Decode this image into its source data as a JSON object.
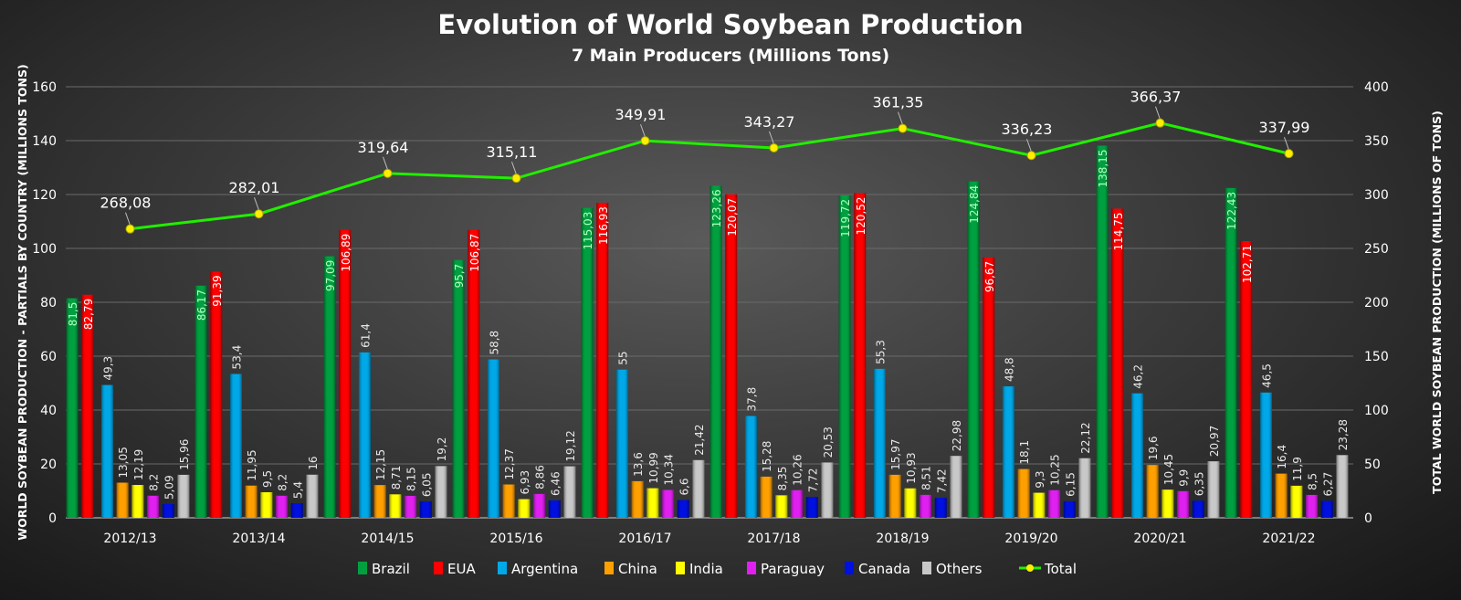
{
  "chart_data": {
    "type": "bar",
    "title": "Evolution of World Soybean Production",
    "subtitle": "7 Main Producers (Millions Tons)",
    "ylabel": "WORLD SOYBEAN PRODUCTION - PARTIALS BY COUNTRY (MILLIONS TONS)",
    "y2label": "TOTAL WORLD SOYBEAN PRODUCTION (MILLIONS OF TONS)",
    "ylim": [
      0,
      160
    ],
    "y2lim": [
      0,
      400
    ],
    "yticks": [
      0,
      20,
      40,
      60,
      80,
      100,
      120,
      140,
      160
    ],
    "y2ticks": [
      0,
      50,
      100,
      150,
      200,
      250,
      300,
      350,
      400
    ],
    "grid": true,
    "legend": "bottom",
    "categories": [
      "2012/13",
      "2013/14",
      "2014/15",
      "2015/16",
      "2016/17",
      "2017/18",
      "2018/19",
      "2019/20",
      "2020/21",
      "2021/22"
    ],
    "series": [
      {
        "name": "Brazil",
        "color": "#00a040",
        "values": [
          81.5,
          86.17,
          97.09,
          95.7,
          115.03,
          123.26,
          119.72,
          124.84,
          138.15,
          122.43
        ],
        "labels": [
          "81,5",
          "86,17",
          "97,09",
          "95,7",
          "115,03",
          "123,26",
          "119,72",
          "124,84",
          "138,15",
          "122,43"
        ]
      },
      {
        "name": "EUA",
        "color": "#ff0000",
        "values": [
          82.79,
          91.39,
          106.89,
          106.87,
          116.93,
          120.07,
          120.52,
          96.67,
          114.75,
          102.71
        ],
        "labels": [
          "82,79",
          "91,39",
          "106,89",
          "106,87",
          "116,93",
          "120,07",
          "120,52",
          "96,67",
          "114,75",
          "102,71"
        ]
      },
      {
        "name": "Argentina",
        "color": "#00a8e8",
        "values": [
          49.3,
          53.4,
          61.4,
          58.8,
          55,
          37.8,
          55.3,
          48.8,
          46.2,
          46.5
        ],
        "labels": [
          "49,3",
          "53,4",
          "61,4",
          "58,8",
          "55",
          "37,8",
          "55,3",
          "48,8",
          "46,2",
          "46,5"
        ]
      },
      {
        "name": "China",
        "color": "#ffa000",
        "values": [
          13.05,
          11.95,
          12.15,
          12.37,
          13.6,
          15.28,
          15.97,
          18.1,
          19.6,
          16.4
        ],
        "labels": [
          "13,05",
          "11,95",
          "12,15",
          "12,37",
          "13,6",
          "15,28",
          "15,97",
          "18,1",
          "19,6",
          "16,4"
        ]
      },
      {
        "name": "India",
        "color": "#ffff00",
        "values": [
          12.19,
          9.5,
          8.71,
          6.93,
          10.99,
          8.35,
          10.93,
          9.3,
          10.45,
          11.9
        ],
        "labels": [
          "12,19",
          "9,5",
          "8,71",
          "6,93",
          "10,99",
          "8,35",
          "10,93",
          "9,3",
          "10,45",
          "11,9"
        ]
      },
      {
        "name": "Paraguay",
        "color": "#e020f0",
        "values": [
          8.2,
          8.2,
          8.15,
          8.86,
          10.34,
          10.26,
          8.51,
          10.25,
          9.9,
          8.5
        ],
        "labels": [
          "8,2",
          "8,2",
          "8,15",
          "8,86",
          "10,34",
          "10,26",
          "8,51",
          "10,25",
          "9,9",
          "8,5"
        ]
      },
      {
        "name": "Canada",
        "color": "#0010e0",
        "values": [
          5.09,
          5.4,
          6.05,
          6.46,
          6.6,
          7.72,
          7.42,
          6.15,
          6.35,
          6.27
        ],
        "labels": [
          "5,09",
          "5,4",
          "6,05",
          "6,46",
          "6,6",
          "7,72",
          "7,42",
          "6,15",
          "6,35",
          "6,27"
        ]
      },
      {
        "name": "Others",
        "color": "#c8c8c8",
        "values": [
          15.96,
          16,
          19.2,
          19.12,
          21.42,
          20.53,
          22.98,
          22.12,
          20.97,
          23.28
        ],
        "labels": [
          "15,96",
          "16",
          "19,2",
          "19,12",
          "21,42",
          "20,53",
          "22,98",
          "22,12",
          "20,97",
          "23,28"
        ]
      },
      {
        "name": "Total",
        "type": "line",
        "axis": "right",
        "color": "#22ee00",
        "marker_color": "#ffee00",
        "values": [
          268.08,
          282.01,
          319.64,
          315.11,
          349.91,
          343.27,
          361.35,
          336.23,
          366.37,
          337.99
        ],
        "labels": [
          "268,08",
          "282,01",
          "319,64",
          "315,11",
          "349,91",
          "343,27",
          "361,35",
          "336,23",
          "366,37",
          "337,99"
        ]
      }
    ]
  }
}
